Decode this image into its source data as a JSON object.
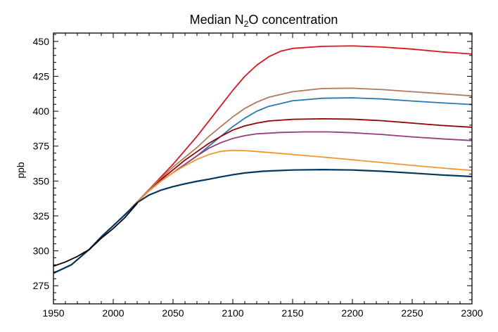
{
  "chart_data": {
    "type": "line",
    "title": "Median N2O concentration",
    "title_main": "Median N",
    "title_sub": "2",
    "title_rest": "O concentration",
    "xlabel": "",
    "ylabel": "ppb",
    "xlim": [
      1950,
      2300
    ],
    "ylim": [
      262,
      456
    ],
    "xticks": [
      1950,
      2000,
      2050,
      2100,
      2150,
      2200,
      2250,
      2300
    ],
    "yticks": [
      275,
      300,
      325,
      350,
      375,
      400,
      425,
      450
    ],
    "grid": false,
    "legend": "none",
    "series": [
      {
        "color": "#e0141e",
        "points": [
          [
            1950,
            284
          ],
          [
            1965,
            290
          ],
          [
            1980,
            301
          ],
          [
            1990,
            310
          ],
          [
            2000,
            318
          ],
          [
            2010,
            326
          ],
          [
            2020,
            335
          ],
          [
            2030,
            344
          ],
          [
            2040,
            353
          ],
          [
            2050,
            362
          ],
          [
            2060,
            372
          ],
          [
            2070,
            382
          ],
          [
            2080,
            393
          ],
          [
            2090,
            404
          ],
          [
            2100,
            415
          ],
          [
            2110,
            425
          ],
          [
            2120,
            433
          ],
          [
            2130,
            439
          ],
          [
            2140,
            443
          ],
          [
            2150,
            445
          ],
          [
            2175,
            446.5
          ],
          [
            2200,
            446.8
          ],
          [
            2225,
            446
          ],
          [
            2250,
            444.5
          ],
          [
            2275,
            442.5
          ],
          [
            2300,
            441
          ]
        ]
      },
      {
        "color": "#b5785a",
        "points": [
          [
            1950,
            284
          ],
          [
            1965,
            290
          ],
          [
            1980,
            301
          ],
          [
            1990,
            310
          ],
          [
            2000,
            318
          ],
          [
            2010,
            326
          ],
          [
            2020,
            335
          ],
          [
            2030,
            344
          ],
          [
            2040,
            352
          ],
          [
            2050,
            360
          ],
          [
            2060,
            367
          ],
          [
            2070,
            374
          ],
          [
            2080,
            382
          ],
          [
            2090,
            389
          ],
          [
            2100,
            396
          ],
          [
            2110,
            402
          ],
          [
            2120,
            406.5
          ],
          [
            2130,
            410
          ],
          [
            2150,
            414
          ],
          [
            2175,
            416.3
          ],
          [
            2200,
            416.5
          ],
          [
            2225,
            415.5
          ],
          [
            2250,
            414
          ],
          [
            2275,
            412.5
          ],
          [
            2300,
            411
          ]
        ]
      },
      {
        "color": "#2878b4",
        "points": [
          [
            1950,
            284
          ],
          [
            1965,
            290
          ],
          [
            1980,
            301
          ],
          [
            1990,
            310
          ],
          [
            2000,
            318
          ],
          [
            2010,
            326
          ],
          [
            2020,
            335
          ],
          [
            2030,
            343
          ],
          [
            2040,
            350
          ],
          [
            2050,
            356
          ],
          [
            2060,
            362
          ],
          [
            2070,
            368
          ],
          [
            2080,
            375
          ],
          [
            2090,
            382
          ],
          [
            2100,
            389
          ],
          [
            2110,
            395
          ],
          [
            2120,
            400
          ],
          [
            2130,
            403.5
          ],
          [
            2150,
            407.5
          ],
          [
            2175,
            409.3
          ],
          [
            2200,
            409.6
          ],
          [
            2225,
            408.8
          ],
          [
            2250,
            407.3
          ],
          [
            2275,
            406
          ],
          [
            2300,
            404.8
          ]
        ]
      },
      {
        "color": "#960000",
        "points": [
          [
            1950,
            284
          ],
          [
            1965,
            290
          ],
          [
            1980,
            301
          ],
          [
            1990,
            310
          ],
          [
            2000,
            318
          ],
          [
            2010,
            326
          ],
          [
            2020,
            335
          ],
          [
            2030,
            343
          ],
          [
            2040,
            351
          ],
          [
            2050,
            358
          ],
          [
            2060,
            365
          ],
          [
            2070,
            371
          ],
          [
            2080,
            377
          ],
          [
            2090,
            382
          ],
          [
            2100,
            386.5
          ],
          [
            2110,
            389.5
          ],
          [
            2120,
            391.5
          ],
          [
            2130,
            393
          ],
          [
            2150,
            394.2
          ],
          [
            2175,
            394.6
          ],
          [
            2200,
            394.3
          ],
          [
            2225,
            393.2
          ],
          [
            2250,
            391.5
          ],
          [
            2275,
            389.8
          ],
          [
            2300,
            388.5
          ]
        ]
      },
      {
        "color": "#963c7d",
        "points": [
          [
            1950,
            284
          ],
          [
            1965,
            290
          ],
          [
            1980,
            301
          ],
          [
            1990,
            310
          ],
          [
            2000,
            318
          ],
          [
            2010,
            326
          ],
          [
            2020,
            335
          ],
          [
            2030,
            343
          ],
          [
            2040,
            350
          ],
          [
            2050,
            356
          ],
          [
            2060,
            362
          ],
          [
            2070,
            368
          ],
          [
            2080,
            373.5
          ],
          [
            2090,
            377.5
          ],
          [
            2100,
            380.5
          ],
          [
            2110,
            382.5
          ],
          [
            2120,
            383.8
          ],
          [
            2140,
            384.8
          ],
          [
            2160,
            385.2
          ],
          [
            2180,
            385.2
          ],
          [
            2200,
            384.6
          ],
          [
            2225,
            383.3
          ],
          [
            2250,
            381.6
          ],
          [
            2275,
            380.2
          ],
          [
            2300,
            379
          ]
        ]
      },
      {
        "color": "#f5962d",
        "points": [
          [
            1950,
            284
          ],
          [
            1965,
            290
          ],
          [
            1980,
            301
          ],
          [
            1990,
            310
          ],
          [
            2000,
            318
          ],
          [
            2010,
            326
          ],
          [
            2020,
            335
          ],
          [
            2030,
            343
          ],
          [
            2040,
            350
          ],
          [
            2050,
            356
          ],
          [
            2060,
            361
          ],
          [
            2070,
            365.5
          ],
          [
            2080,
            369
          ],
          [
            2090,
            371.3
          ],
          [
            2100,
            372
          ],
          [
            2110,
            371.8
          ],
          [
            2125,
            370.8
          ],
          [
            2150,
            369
          ],
          [
            2175,
            367.2
          ],
          [
            2200,
            365.2
          ],
          [
            2225,
            363.2
          ],
          [
            2250,
            361.2
          ],
          [
            2275,
            359.3
          ],
          [
            2300,
            357.6
          ]
        ]
      },
      {
        "color": "#00375f",
        "points": [
          [
            1950,
            284
          ],
          [
            1965,
            290
          ],
          [
            1980,
            301
          ],
          [
            1990,
            310
          ],
          [
            2000,
            318
          ],
          [
            2010,
            326
          ],
          [
            2020,
            334.5
          ],
          [
            2030,
            340
          ],
          [
            2040,
            343.5
          ],
          [
            2050,
            346
          ],
          [
            2060,
            348
          ],
          [
            2070,
            349.8
          ],
          [
            2080,
            351.3
          ],
          [
            2090,
            353
          ],
          [
            2100,
            354.5
          ],
          [
            2110,
            355.8
          ],
          [
            2125,
            357
          ],
          [
            2150,
            357.9
          ],
          [
            2175,
            358.2
          ],
          [
            2200,
            357.9
          ],
          [
            2225,
            357
          ],
          [
            2250,
            355.7
          ],
          [
            2275,
            354.3
          ],
          [
            2300,
            353.2
          ]
        ]
      },
      {
        "color": "#000000",
        "points": [
          [
            1950,
            289
          ],
          [
            1960,
            292
          ],
          [
            1970,
            296
          ],
          [
            1975,
            298.5
          ],
          [
            1980,
            301
          ],
          [
            1985,
            305
          ],
          [
            1990,
            309
          ],
          [
            1995,
            312.5
          ],
          [
            2000,
            316
          ],
          [
            2005,
            320
          ],
          [
            2010,
            324
          ],
          [
            2015,
            329
          ],
          [
            2020,
            334
          ]
        ]
      }
    ]
  }
}
